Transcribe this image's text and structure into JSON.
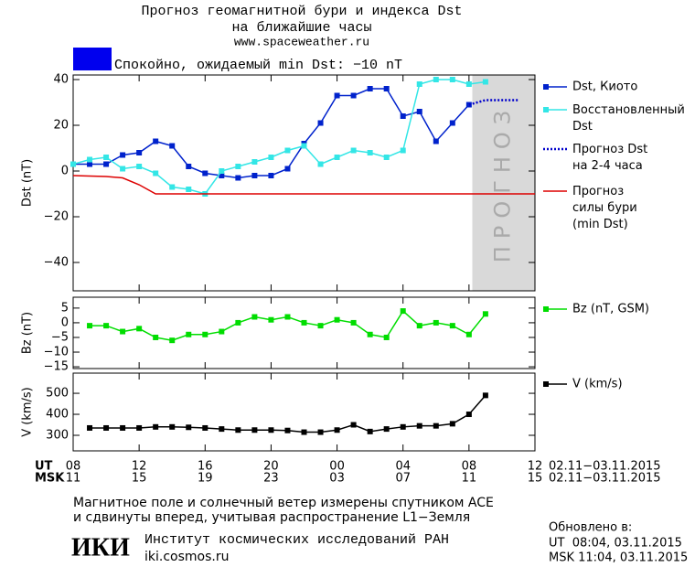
{
  "header": {
    "title": "Прогноз геомагнитной бури и индекса Dst",
    "subtitle": "на ближайшие часы",
    "url": "www.spaceweather.ru",
    "status": "Спокойно, ожидаемый min Dst: −10 nT",
    "status_color": "#0000ee"
  },
  "chart_data": [
    {
      "type": "line",
      "ylabel": "Dst (nT)",
      "xlim": [
        0,
        28
      ],
      "ylim": [
        -52.4,
        42
      ],
      "yticks": [
        {
          "value": -40,
          "label": "−40"
        },
        {
          "value": -20,
          "label": "−20"
        },
        0,
        20,
        40
      ],
      "xticks": [
        0,
        4,
        8,
        12,
        16,
        20,
        24,
        28
      ],
      "forecast_region": [
        24.2,
        28
      ],
      "forecast_label": "ПРОГНОЗ",
      "x": [
        0,
        1,
        2,
        3,
        4,
        5,
        6,
        7,
        8,
        9,
        10,
        11,
        12,
        13,
        14,
        15,
        16,
        17,
        18,
        19,
        20,
        21,
        22,
        23,
        24,
        25,
        26,
        27,
        28
      ],
      "series": [
        {
          "name": "Dst, Киото",
          "color": "#0022cc",
          "marker": true,
          "values": [
            3,
            3,
            3,
            7,
            8,
            13,
            11,
            2,
            -1,
            -2,
            -3,
            -2,
            -2,
            1,
            12,
            21,
            33,
            33,
            36,
            36,
            24,
            26,
            13,
            21,
            29,
            null,
            null,
            null,
            null
          ]
        },
        {
          "name": "Восстановленный\nDst",
          "color": "#33e6e6",
          "marker": true,
          "values": [
            3,
            5,
            6,
            1,
            2,
            -1,
            -7,
            -8,
            -10,
            0,
            2,
            4,
            6,
            9,
            11,
            3,
            6,
            9,
            8,
            6,
            9,
            38,
            40,
            40,
            38,
            39,
            null,
            null,
            null
          ]
        },
        {
          "name": "Прогноз Dst\nна 2-4 часа",
          "color": "#0000cc",
          "marker": false,
          "dashed": true,
          "values": [
            null,
            null,
            null,
            null,
            null,
            null,
            null,
            null,
            null,
            null,
            null,
            null,
            null,
            null,
            null,
            null,
            null,
            null,
            null,
            null,
            null,
            null,
            null,
            null,
            29,
            31,
            31,
            31,
            null
          ]
        },
        {
          "name": "Прогноз\nсилы бури\n(min Dst)",
          "color": "#dd0000",
          "marker": false,
          "values": [
            -2,
            -2.2,
            -2.4,
            -3,
            -6,
            -10,
            -10,
            -10,
            -10,
            -10,
            -10,
            -10,
            -10,
            -10,
            -10,
            -10,
            -10,
            -10,
            -10,
            -10,
            -10,
            -10,
            -10,
            -10,
            -10,
            -10,
            -10,
            -10,
            -10
          ]
        }
      ]
    },
    {
      "type": "line",
      "ylabel": "Bz (nT)",
      "xlim": [
        0,
        28
      ],
      "ylim": [
        -15.6,
        8.7
      ],
      "yticks": [
        {
          "value": -15,
          "label": "−15"
        },
        {
          "value": -10,
          "label": "−10"
        },
        {
          "value": -5,
          "label": "−5"
        },
        0,
        5
      ],
      "xticks": [
        0,
        4,
        8,
        12,
        16,
        20,
        24,
        28
      ],
      "x": [
        1,
        2,
        3,
        4,
        5,
        6,
        7,
        8,
        9,
        10,
        11,
        12,
        13,
        14,
        15,
        16,
        17,
        18,
        19,
        20,
        21,
        22,
        23,
        24,
        25
      ],
      "series": [
        {
          "name": "Bz (nT, GSM)",
          "color": "#00dd00",
          "marker": true,
          "values": [
            -1,
            -1,
            -3,
            -2,
            -5,
            -6,
            -4,
            -4,
            -3,
            0,
            2,
            1,
            2,
            0,
            -1,
            1,
            0,
            -4,
            -5,
            4,
            -1,
            0,
            -1,
            -4,
            3
          ]
        }
      ]
    },
    {
      "type": "line",
      "ylabel": "V (km/s)",
      "xlim": [
        0,
        28
      ],
      "ylim": [
        226,
        596
      ],
      "yticks": [
        300,
        400,
        500
      ],
      "xticks": [
        {
          "value": 0,
          "label": "08"
        },
        {
          "value": 4,
          "label": "12"
        },
        {
          "value": 8,
          "label": "16"
        },
        {
          "value": 12,
          "label": "20"
        },
        {
          "value": 16,
          "label": "00"
        },
        {
          "value": 20,
          "label": "04"
        },
        {
          "value": 24,
          "label": "08"
        },
        {
          "value": 28,
          "label": "12"
        }
      ],
      "x2ticks": [
        {
          "value": 0,
          "label": "11"
        },
        {
          "value": 4,
          "label": "15"
        },
        {
          "value": 8,
          "label": "19"
        },
        {
          "value": 12,
          "label": "23"
        },
        {
          "value": 16,
          "label": "03"
        },
        {
          "value": 20,
          "label": "07"
        },
        {
          "value": 24,
          "label": "11"
        },
        {
          "value": 28,
          "label": "15"
        }
      ],
      "xlabel": "UT",
      "x2label": "MSK",
      "xdate": "02.11−03.11.2015",
      "x2date": "02.11−03.11.2015",
      "x": [
        1,
        2,
        3,
        4,
        5,
        6,
        7,
        8,
        9,
        10,
        11,
        12,
        13,
        14,
        15,
        16,
        17,
        18,
        19,
        20,
        21,
        22,
        23,
        24,
        25
      ],
      "series": [
        {
          "name": "V (km/s)",
          "color": "#000000",
          "marker": true,
          "values": [
            335,
            335,
            335,
            335,
            340,
            340,
            338,
            335,
            330,
            325,
            325,
            325,
            323,
            315,
            315,
            325,
            350,
            318,
            330,
            340,
            345,
            345,
            355,
            400,
            490
          ]
        }
      ]
    }
  ],
  "footer": {
    "note": [
      "Магнитное поле и солнечный ветер измерены спутником ACE",
      "и сдвинуты вперед, учитывая распространение L1−Земля"
    ],
    "logo": "ИКИ",
    "institute": "Институт космических исследований РАН",
    "site": "iki.cosmos.ru",
    "updated": "Обновлено в:",
    "ut": "UT  08:04, 03.11.2015",
    "msk": "MSK 11:04, 03.11.2015"
  }
}
